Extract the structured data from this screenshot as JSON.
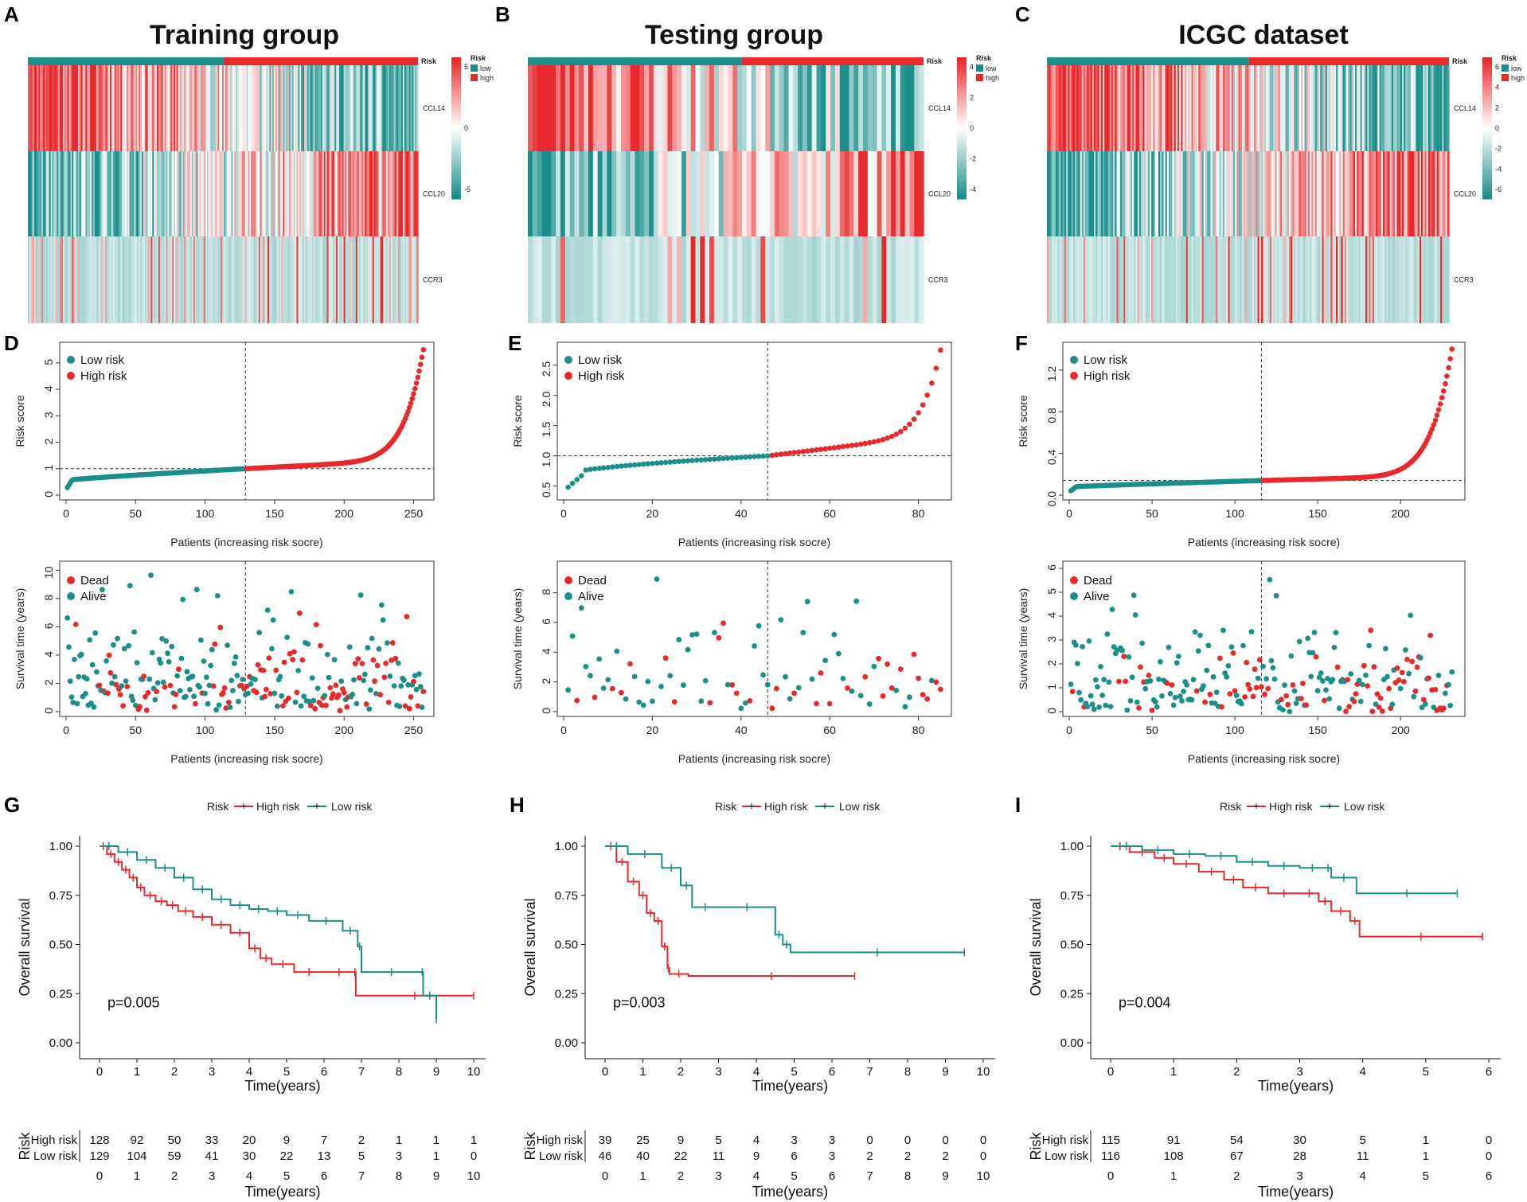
{
  "panels": {
    "A": "A",
    "B": "B",
    "C": "C",
    "D": "D",
    "E": "E",
    "F": "F",
    "G": "G",
    "H": "H",
    "I": "I"
  },
  "colors": {
    "high": "#e8292b",
    "low": "#1a8f8a",
    "mid": "#ffffff"
  },
  "chart_data": [
    {
      "type": "heatmap",
      "panel": "A",
      "title": "Training group",
      "annotation_label": "Risk",
      "legend_title": "Risk",
      "legend_items": [
        "low",
        "high"
      ],
      "rows": [
        "CCL14",
        "CCL20",
        "CCR3"
      ],
      "n_low": 129,
      "n_high": 128,
      "colorbar_ticks": [
        "5",
        "0",
        "-5"
      ]
    },
    {
      "type": "heatmap",
      "panel": "B",
      "title": "Testing group",
      "annotation_label": "Risk",
      "legend_title": "Risk",
      "legend_items": [
        "low",
        "high"
      ],
      "rows": [
        "CCL14",
        "CCL20",
        "CCR3"
      ],
      "n_low": 46,
      "n_high": 39,
      "colorbar_ticks": [
        "4",
        "2",
        "0",
        "-2",
        "-4"
      ]
    },
    {
      "type": "heatmap",
      "panel": "C",
      "title": "ICGC dataset",
      "annotation_label": "Risk",
      "legend_title": "Risk",
      "legend_items": [
        "low",
        "high"
      ],
      "rows": [
        "CCL14",
        "CCL20",
        "CCR3"
      ],
      "n_low": 116,
      "n_high": 115,
      "colorbar_ticks": [
        "6",
        "4",
        "2",
        "0",
        "-2",
        "-4",
        "-6"
      ]
    },
    {
      "type": "scatter",
      "panel": "D",
      "ylabel": "Risk score",
      "xlabel": "Patients (increasing risk socre)",
      "legend": [
        "Low risk",
        "High risk"
      ],
      "n": 257,
      "cutoff_index": 129,
      "cutoff_value": 1.0,
      "xlim": [
        0,
        260
      ],
      "ylim": [
        0,
        5.6
      ],
      "xticks": [
        0,
        50,
        100,
        150,
        200,
        250
      ],
      "yticks": [
        0,
        1,
        2,
        3,
        4,
        5
      ],
      "score_range": [
        0.2,
        5.5
      ]
    },
    {
      "type": "scatter",
      "panel": "E",
      "ylabel": "Risk score",
      "xlabel": "Patients (increasing risk socre)",
      "legend": [
        "Low risk",
        "High risk"
      ],
      "n": 85,
      "cutoff_index": 46,
      "cutoff_value": 1.0,
      "xlim": [
        0,
        86
      ],
      "ylim": [
        0.35,
        2.8
      ],
      "xticks": [
        0,
        20,
        40,
        60,
        80
      ],
      "yticks": [
        "0.5",
        "1.0",
        "1.5",
        "2.0",
        "2.5"
      ],
      "score_range": [
        0.42,
        2.75
      ]
    },
    {
      "type": "scatter",
      "panel": "F",
      "ylabel": "Risk score",
      "xlabel": "Patients (increasing risk socre)",
      "legend": [
        "Low risk",
        "High risk"
      ],
      "n": 231,
      "cutoff_index": 116,
      "cutoff_value": 0.14,
      "xlim": [
        0,
        235
      ],
      "ylim": [
        0,
        1.42
      ],
      "xticks": [
        0,
        50,
        100,
        150,
        200
      ],
      "yticks": [
        "0.0",
        "0.4",
        "0.8",
        "1.2"
      ],
      "score_range": [
        0.03,
        1.4
      ]
    },
    {
      "type": "scatter",
      "panel": "D2",
      "ylabel": "Survival time (years)",
      "xlabel": "Patients (increasing risk socre)",
      "legend": [
        "Dead",
        "Alive"
      ],
      "n": 257,
      "cutoff_index": 129,
      "xlim": [
        0,
        260
      ],
      "ylim": [
        0,
        10.3
      ],
      "xticks": [
        0,
        50,
        100,
        150,
        200,
        250
      ],
      "yticks": [
        0,
        2,
        4,
        6,
        8,
        10
      ]
    },
    {
      "type": "scatter",
      "panel": "E2",
      "ylabel": "Survival time (years)",
      "xlabel": "Patients (increasing risk socre)",
      "legend": [
        "Dead",
        "Alive"
      ],
      "n": 85,
      "cutoff_index": 46,
      "xlim": [
        0,
        86
      ],
      "ylim": [
        0,
        9.8
      ],
      "xticks": [
        0,
        20,
        40,
        60,
        80
      ],
      "yticks": [
        0,
        2,
        4,
        6,
        8
      ]
    },
    {
      "type": "scatter",
      "panel": "F2",
      "ylabel": "Survival time (years)",
      "xlabel": "Patients (increasing risk socre)",
      "legend": [
        "Dead",
        "Alive"
      ],
      "n": 231,
      "cutoff_index": 116,
      "xlim": [
        0,
        235
      ],
      "ylim": [
        0,
        6.1
      ],
      "xticks": [
        0,
        50,
        100,
        150,
        200
      ],
      "yticks": [
        0,
        1,
        2,
        3,
        4,
        5,
        6
      ]
    },
    {
      "type": "line",
      "panel": "G",
      "legend_title": "Risk",
      "legend": [
        "High risk",
        "Low risk"
      ],
      "xlabel": "Time(years)",
      "ylabel": "Overall survival",
      "pvalue": "p=0.005",
      "xlim": [
        0,
        10
      ],
      "ylim": [
        0,
        1
      ],
      "xticks": [
        0,
        1,
        2,
        3,
        4,
        5,
        6,
        7,
        8,
        9,
        10
      ],
      "yticks": [
        "0.00",
        "0.25",
        "0.50",
        "0.75",
        "1.00"
      ],
      "series": [
        {
          "name": "High risk",
          "x": [
            0,
            0.2,
            0.4,
            0.6,
            0.8,
            1.0,
            1.2,
            1.5,
            1.8,
            2.1,
            2.5,
            3.0,
            3.5,
            4.0,
            4.3,
            4.6,
            5.2,
            6.0,
            6.8,
            6.85,
            10.0
          ],
          "y": [
            1.0,
            0.96,
            0.92,
            0.88,
            0.84,
            0.79,
            0.75,
            0.72,
            0.7,
            0.67,
            0.64,
            0.6,
            0.56,
            0.48,
            0.43,
            0.4,
            0.36,
            0.36,
            0.36,
            0.24,
            0.24
          ]
        },
        {
          "name": "Low risk",
          "x": [
            0,
            0.5,
            1.0,
            1.5,
            2.0,
            2.5,
            3.0,
            3.5,
            4.0,
            4.5,
            5.0,
            5.6,
            6.5,
            6.9,
            7.0,
            8.6,
            8.65,
            9.0
          ],
          "y": [
            1.0,
            0.97,
            0.93,
            0.89,
            0.84,
            0.78,
            0.73,
            0.7,
            0.68,
            0.67,
            0.65,
            0.62,
            0.57,
            0.49,
            0.36,
            0.36,
            0.24,
            0.12
          ]
        }
      ],
      "risk_table": {
        "title": "Risk",
        "times": [
          "0",
          "1",
          "2",
          "3",
          "4",
          "5",
          "6",
          "7",
          "8",
          "9",
          "10"
        ],
        "High risk": [
          "128",
          "92",
          "50",
          "33",
          "20",
          "9",
          "7",
          "2",
          "1",
          "1",
          "1"
        ],
        "Low risk": [
          "129",
          "104",
          "59",
          "41",
          "30",
          "22",
          "13",
          "5",
          "3",
          "1",
          "0"
        ]
      }
    },
    {
      "type": "line",
      "panel": "H",
      "legend_title": "Risk",
      "legend": [
        "High risk",
        "Low risk"
      ],
      "xlabel": "Time(years)",
      "ylabel": "Overall survival",
      "pvalue": "p=0.003",
      "xlim": [
        0,
        10
      ],
      "ylim": [
        0,
        1
      ],
      "xticks": [
        0,
        1,
        2,
        3,
        4,
        5,
        6,
        7,
        8,
        9,
        10
      ],
      "yticks": [
        "0.00",
        "0.25",
        "0.50",
        "0.75",
        "1.00"
      ],
      "series": [
        {
          "name": "High risk",
          "x": [
            0,
            0.3,
            0.6,
            0.9,
            1.1,
            1.3,
            1.5,
            1.65,
            1.7,
            2.2,
            6.6
          ],
          "y": [
            1.0,
            0.92,
            0.82,
            0.75,
            0.66,
            0.62,
            0.49,
            0.38,
            0.35,
            0.34,
            0.34
          ]
        },
        {
          "name": "Low risk",
          "x": [
            0,
            0.6,
            1.5,
            2.0,
            2.3,
            3.0,
            4.5,
            4.7,
            4.9,
            9.5
          ],
          "y": [
            1.0,
            0.96,
            0.89,
            0.8,
            0.69,
            0.69,
            0.55,
            0.5,
            0.46,
            0.46
          ]
        }
      ],
      "risk_table": {
        "title": "Risk",
        "times": [
          "0",
          "1",
          "2",
          "3",
          "4",
          "5",
          "6",
          "7",
          "8",
          "9",
          "10"
        ],
        "High risk": [
          "39",
          "25",
          "9",
          "5",
          "4",
          "3",
          "3",
          "0",
          "0",
          "0",
          "0"
        ],
        "Low risk": [
          "46",
          "40",
          "22",
          "11",
          "9",
          "6",
          "3",
          "2",
          "2",
          "2",
          "0"
        ]
      }
    },
    {
      "type": "line",
      "panel": "I",
      "legend_title": "Risk",
      "legend": [
        "High risk",
        "Low risk"
      ],
      "xlabel": "Time(years)",
      "ylabel": "Overall survival",
      "pvalue": "p=0.004",
      "xlim": [
        0,
        6
      ],
      "ylim": [
        0,
        1
      ],
      "xticks": [
        0,
        1,
        2,
        3,
        4,
        5,
        6
      ],
      "yticks": [
        "0.00",
        "0.25",
        "0.50",
        "0.75",
        "1.00"
      ],
      "series": [
        {
          "name": "High risk",
          "x": [
            0,
            0.3,
            0.7,
            1.0,
            1.4,
            1.8,
            2.1,
            2.5,
            3.0,
            3.3,
            3.5,
            3.8,
            3.95,
            5.9
          ],
          "y": [
            1.0,
            0.97,
            0.94,
            0.91,
            0.87,
            0.83,
            0.79,
            0.76,
            0.76,
            0.72,
            0.67,
            0.62,
            0.54,
            0.54
          ]
        },
        {
          "name": "Low risk",
          "x": [
            0,
            0.5,
            1.0,
            1.5,
            2.0,
            2.5,
            3.0,
            3.4,
            3.5,
            3.9,
            5.5
          ],
          "y": [
            1.0,
            0.98,
            0.96,
            0.95,
            0.92,
            0.9,
            0.89,
            0.89,
            0.84,
            0.76,
            0.76
          ]
        }
      ],
      "risk_table": {
        "title": "Risk",
        "times": [
          "0",
          "1",
          "2",
          "3",
          "4",
          "5",
          "6"
        ],
        "High risk": [
          "115",
          "91",
          "54",
          "30",
          "5",
          "1",
          "0"
        ],
        "Low risk": [
          "116",
          "108",
          "67",
          "28",
          "11",
          "1",
          "0"
        ]
      }
    }
  ]
}
